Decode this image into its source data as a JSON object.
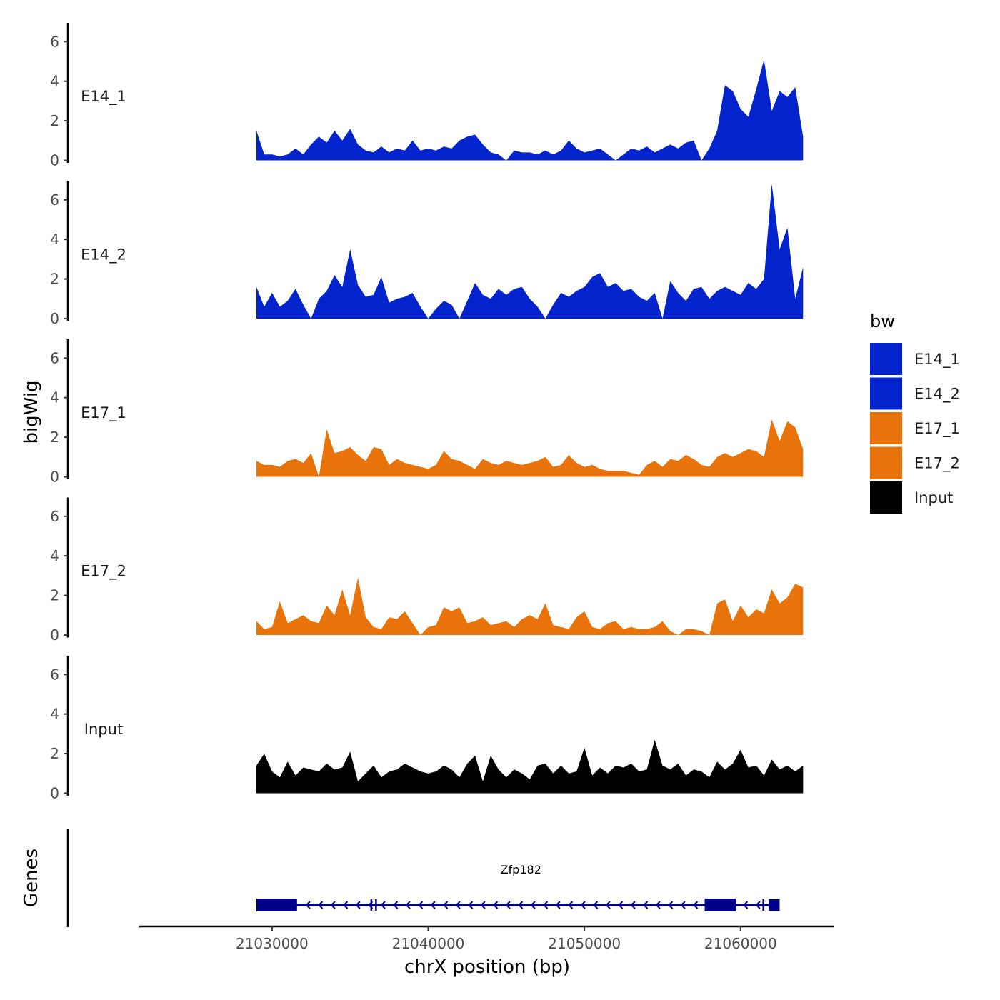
{
  "chart_data": {
    "type": "area",
    "title": "",
    "xlabel": "chrX position (bp)",
    "ylabel": "bigWig",
    "gene_panel_label": "Genes",
    "xlim": [
      21021500,
      21066000
    ],
    "x_ticks": [
      21030000,
      21040000,
      21050000,
      21060000
    ],
    "x_tick_labels": [
      "21030000",
      "21040000",
      "21050000",
      "21060000"
    ],
    "ylim": [
      0,
      7
    ],
    "y_ticks": [
      0,
      2,
      4,
      6
    ],
    "y_tick_labels": [
      "0",
      "2",
      "4",
      "6"
    ],
    "legend": {
      "title": "bw",
      "position": "right",
      "entries": [
        {
          "label": "E14_1",
          "color": "#0323cc"
        },
        {
          "label": "E14_2",
          "color": "#0323cc"
        },
        {
          "label": "E17_1",
          "color": "#e8730a"
        },
        {
          "label": "E17_2",
          "color": "#e8730a"
        },
        {
          "label": "Input",
          "color": "#000000"
        }
      ]
    },
    "x": [
      21029000,
      21029500,
      21030000,
      21030500,
      21031000,
      21031500,
      21032000,
      21032500,
      21033000,
      21033500,
      21034000,
      21034500,
      21035000,
      21035500,
      21036000,
      21036500,
      21037000,
      21037500,
      21038000,
      21038500,
      21039000,
      21039500,
      21040000,
      21040500,
      21041000,
      21041500,
      21042000,
      21042500,
      21043000,
      21043500,
      21044000,
      21044500,
      21045000,
      21045500,
      21046000,
      21046500,
      21047000,
      21047500,
      21048000,
      21048500,
      21049000,
      21049500,
      21050000,
      21050500,
      21051000,
      21051500,
      21052000,
      21052500,
      21053000,
      21053500,
      21054000,
      21054500,
      21055000,
      21055500,
      21056000,
      21056500,
      21057000,
      21057500,
      21058000,
      21058500,
      21059000,
      21059500,
      21060000,
      21060500,
      21061000,
      21061500,
      21062000,
      21062500,
      21063000,
      21063500,
      21064000
    ],
    "series": [
      {
        "name": "E14_1",
        "values": [
          1.5,
          0.3,
          0.3,
          0.2,
          0.3,
          0.6,
          0.3,
          0.8,
          1.2,
          0.9,
          1.5,
          1.0,
          1.6,
          0.8,
          0.5,
          0.4,
          0.7,
          0.4,
          0.6,
          0.5,
          1.0,
          0.5,
          0.6,
          0.5,
          0.7,
          0.6,
          1.0,
          1.2,
          1.3,
          0.8,
          0.4,
          0.3,
          0.0,
          0.5,
          0.4,
          0.4,
          0.3,
          0.5,
          0.3,
          0.5,
          1.0,
          0.6,
          0.4,
          0.5,
          0.6,
          0.3,
          0.0,
          0.3,
          0.6,
          0.5,
          0.7,
          0.4,
          0.6,
          0.8,
          0.6,
          0.9,
          1.0,
          0.0,
          0.6,
          1.5,
          3.8,
          3.5,
          2.6,
          2.2,
          3.6,
          5.1,
          2.5,
          3.5,
          3.2,
          3.7,
          1.2
        ]
      },
      {
        "name": "E14_2",
        "values": [
          1.6,
          0.6,
          1.3,
          0.6,
          0.9,
          1.5,
          0.7,
          0.0,
          1.0,
          1.4,
          2.2,
          1.6,
          3.5,
          1.7,
          1.1,
          1.2,
          2.1,
          0.8,
          1.0,
          1.1,
          1.3,
          0.6,
          0.0,
          0.5,
          0.9,
          0.7,
          0.0,
          0.9,
          1.8,
          1.2,
          1.0,
          1.5,
          1.2,
          1.5,
          1.6,
          1.0,
          0.6,
          0.0,
          0.7,
          1.3,
          1.1,
          1.4,
          1.6,
          2.1,
          2.3,
          1.6,
          1.8,
          1.4,
          1.5,
          1.1,
          0.9,
          1.3,
          0.0,
          1.9,
          1.3,
          0.9,
          1.5,
          1.6,
          1.0,
          1.4,
          1.6,
          1.4,
          1.2,
          1.8,
          1.5,
          2.0,
          6.8,
          3.5,
          4.6,
          1.0,
          2.6
        ]
      },
      {
        "name": "E17_1",
        "values": [
          0.8,
          0.6,
          0.6,
          0.5,
          0.8,
          0.9,
          0.7,
          1.2,
          0.0,
          2.4,
          1.2,
          1.3,
          1.5,
          1.1,
          0.8,
          1.5,
          1.4,
          0.6,
          0.9,
          0.7,
          0.6,
          0.5,
          0.4,
          0.6,
          1.3,
          0.9,
          0.8,
          0.6,
          0.4,
          0.9,
          0.7,
          0.6,
          0.8,
          0.7,
          0.6,
          0.7,
          0.8,
          1.0,
          0.5,
          0.6,
          1.1,
          0.7,
          0.5,
          0.6,
          0.4,
          0.3,
          0.3,
          0.3,
          0.2,
          0.1,
          0.6,
          0.8,
          0.5,
          0.9,
          0.8,
          1.1,
          0.9,
          0.6,
          0.5,
          1.0,
          1.2,
          1.0,
          1.2,
          1.4,
          1.3,
          1.0,
          2.9,
          1.8,
          2.8,
          2.5,
          1.4
        ]
      },
      {
        "name": "E17_2",
        "values": [
          0.7,
          0.3,
          0.4,
          1.7,
          0.6,
          0.8,
          1.0,
          0.7,
          0.6,
          1.5,
          1.0,
          2.3,
          1.0,
          2.9,
          0.9,
          0.4,
          0.3,
          0.9,
          0.8,
          1.2,
          0.6,
          0.0,
          0.4,
          0.5,
          1.4,
          1.2,
          1.4,
          0.6,
          0.7,
          0.9,
          0.5,
          0.6,
          0.7,
          0.4,
          0.8,
          1.0,
          0.8,
          1.6,
          0.5,
          0.4,
          0.3,
          0.9,
          1.2,
          0.4,
          0.3,
          0.6,
          0.7,
          0.3,
          0.4,
          0.3,
          0.3,
          0.4,
          0.7,
          0.2,
          0.0,
          0.3,
          0.3,
          0.2,
          0.0,
          1.6,
          1.8,
          0.7,
          1.5,
          0.9,
          1.3,
          1.1,
          2.3,
          1.6,
          1.9,
          2.6,
          2.4
        ]
      },
      {
        "name": "Input",
        "values": [
          1.4,
          2.0,
          1.1,
          0.8,
          1.6,
          0.9,
          1.3,
          1.2,
          1.1,
          1.5,
          1.2,
          1.3,
          2.1,
          0.6,
          1.0,
          1.4,
          0.8,
          1.1,
          1.2,
          1.5,
          1.3,
          1.1,
          1.0,
          1.1,
          1.4,
          1.2,
          0.8,
          1.5,
          1.9,
          0.6,
          1.9,
          1.2,
          0.8,
          1.2,
          1.0,
          0.7,
          1.4,
          1.5,
          1.0,
          1.4,
          1.0,
          1.1,
          2.3,
          0.9,
          1.3,
          1.0,
          1.4,
          1.3,
          1.5,
          1.1,
          1.2,
          2.7,
          1.4,
          1.2,
          1.5,
          0.9,
          1.2,
          1.1,
          0.8,
          1.6,
          1.2,
          1.5,
          2.2,
          1.3,
          1.4,
          0.9,
          1.7,
          1.2,
          1.4,
          1.1,
          1.4
        ]
      }
    ],
    "gene": {
      "name": "Zfp182",
      "strand": "-",
      "start": 21029000,
      "end": 21062500,
      "color": "#00008b",
      "exons": [
        [
          21029000,
          21031600
        ],
        [
          21036300,
          21036400
        ],
        [
          21036600,
          21036700
        ],
        [
          21057700,
          21059700
        ],
        [
          21061400,
          21061500
        ],
        [
          21061800,
          21062500
        ]
      ]
    }
  }
}
